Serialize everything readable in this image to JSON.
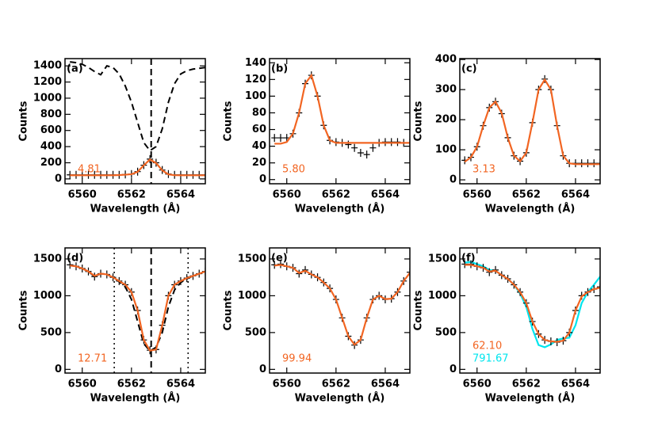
{
  "chart_data": [
    {
      "type": "line",
      "panel_label": "(a)",
      "xlabel": "Wavelength (Å)",
      "ylabel": "Counts",
      "xlim": [
        6559.3,
        6565
      ],
      "xticks": [
        6560,
        6562,
        6564
      ],
      "ylim": [
        -60,
        1490
      ],
      "yticks": [
        0,
        200,
        400,
        600,
        800,
        1000,
        1200,
        1400
      ],
      "x": [
        6559.5,
        6559.75,
        6560,
        6560.25,
        6560.5,
        6560.75,
        6561,
        6561.25,
        6561.5,
        6561.75,
        6562,
        6562.25,
        6562.5,
        6562.75,
        6563,
        6563.25,
        6563.5,
        6563.75,
        6564,
        6564.25,
        6564.5,
        6564.75,
        6565
      ],
      "series": [
        {
          "style": "dashed",
          "color": "#000000",
          "values": [
            1450,
            1440,
            1420,
            1380,
            1330,
            1290,
            1400,
            1380,
            1300,
            1150,
            950,
            700,
            450,
            350,
            400,
            620,
            950,
            1180,
            1300,
            1340,
            1360,
            1370,
            1380
          ]
        },
        {
          "style": "crosses",
          "color": "#000000",
          "values": [
            50,
            50,
            50,
            50,
            50,
            50,
            50,
            50,
            50,
            55,
            60,
            90,
            170,
            245,
            200,
            110,
            60,
            50,
            50,
            50,
            50,
            50,
            50
          ]
        },
        {
          "style": "solid",
          "color": "#f26522",
          "values": [
            45,
            45,
            45,
            45,
            45,
            45,
            45,
            45,
            48,
            52,
            58,
            88,
            168,
            240,
            196,
            106,
            56,
            46,
            45,
            45,
            45,
            45,
            45
          ]
        }
      ],
      "vlines": [
        {
          "x": 6562.8,
          "style": "dashed"
        }
      ],
      "annotations": [
        {
          "text": "4.81",
          "color": "#f26522"
        }
      ]
    },
    {
      "type": "line",
      "panel_label": "(b)",
      "xlabel": "Wavelength (Å)",
      "ylabel": "Counts",
      "xlim": [
        6559.3,
        6565
      ],
      "xticks": [
        6560,
        6562,
        6564
      ],
      "ylim": [
        -5,
        145
      ],
      "yticks": [
        0,
        20,
        40,
        60,
        80,
        100,
        120,
        140
      ],
      "x": [
        6559.5,
        6559.75,
        6560,
        6560.25,
        6560.5,
        6560.75,
        6561,
        6561.25,
        6561.5,
        6561.75,
        6562,
        6562.25,
        6562.5,
        6562.75,
        6563,
        6563.25,
        6563.5,
        6563.75,
        6564,
        6564.25,
        6564.5,
        6564.75,
        6565
      ],
      "series": [
        {
          "style": "crosses",
          "color": "#000000",
          "values": [
            50,
            50,
            50,
            55,
            80,
            115,
            125,
            100,
            65,
            47,
            45,
            44,
            42,
            38,
            32,
            30,
            38,
            44,
            45,
            45,
            45,
            44,
            44
          ]
        },
        {
          "style": "solid",
          "color": "#f26522",
          "values": [
            43,
            43,
            45,
            55,
            80,
            115,
            125,
            100,
            65,
            47,
            44,
            44,
            44,
            44,
            44,
            44,
            44,
            44,
            44,
            44,
            44,
            44,
            44
          ]
        }
      ],
      "vlines": [],
      "annotations": [
        {
          "text": "5.80",
          "color": "#f26522"
        }
      ]
    },
    {
      "type": "line",
      "panel_label": "(c)",
      "xlabel": "Wavelength (Å)",
      "ylabel": "Counts",
      "xlim": [
        6559.3,
        6565
      ],
      "xticks": [
        6560,
        6562,
        6564
      ],
      "ylim": [
        -13,
        403
      ],
      "yticks": [
        0,
        100,
        200,
        300,
        400
      ],
      "x": [
        6559.5,
        6559.75,
        6560,
        6560.25,
        6560.5,
        6560.75,
        6561,
        6561.25,
        6561.5,
        6561.75,
        6562,
        6562.25,
        6562.5,
        6562.75,
        6563,
        6563.25,
        6563.5,
        6563.75,
        6564,
        6564.25,
        6564.5,
        6564.75,
        6565
      ],
      "series": [
        {
          "style": "crosses",
          "color": "#000000",
          "values": [
            65,
            75,
            110,
            180,
            240,
            260,
            220,
            140,
            80,
            62,
            90,
            190,
            300,
            335,
            300,
            180,
            80,
            55,
            55,
            55,
            55,
            55,
            55
          ]
        },
        {
          "style": "solid",
          "color": "#f26522",
          "values": [
            60,
            75,
            110,
            180,
            240,
            260,
            222,
            140,
            80,
            62,
            90,
            190,
            300,
            333,
            300,
            180,
            80,
            55,
            52,
            52,
            52,
            52,
            52
          ]
        }
      ],
      "vlines": [],
      "annotations": [
        {
          "text": "3.13",
          "color": "#f26522"
        }
      ]
    },
    {
      "type": "line",
      "panel_label": "(d)",
      "xlabel": "Wavelength (Å)",
      "ylabel": "Counts",
      "xlim": [
        6559.3,
        6565
      ],
      "xticks": [
        6560,
        6562,
        6564
      ],
      "ylim": [
        -50,
        1650
      ],
      "yticks": [
        0,
        500,
        1000,
        1500
      ],
      "x": [
        6559.5,
        6559.75,
        6560,
        6560.25,
        6560.5,
        6560.75,
        6561,
        6561.25,
        6561.5,
        6561.75,
        6562,
        6562.25,
        6562.5,
        6562.75,
        6563,
        6563.25,
        6563.5,
        6563.75,
        6564,
        6564.25,
        6564.5,
        6564.75,
        6565
      ],
      "series": [
        {
          "style": "dashed",
          "color": "#000000",
          "values": [
            1420,
            1400,
            1370,
            1330,
            1260,
            1300,
            1290,
            1250,
            1190,
            1120,
            950,
            650,
            350,
            250,
            300,
            500,
            850,
            1080,
            1180,
            1230,
            1270,
            1300,
            1330
          ]
        },
        {
          "style": "crosses",
          "color": "#000000",
          "values": [
            1420,
            1400,
            1370,
            1330,
            1260,
            1300,
            1290,
            1250,
            1200,
            1150,
            1050,
            800,
            400,
            260,
            270,
            600,
            1000,
            1150,
            1200,
            1240,
            1270,
            1300,
            1330
          ]
        },
        {
          "style": "solid",
          "color": "#f26522",
          "values": [
            1410,
            1400,
            1370,
            1330,
            1270,
            1300,
            1290,
            1250,
            1200,
            1150,
            1050,
            800,
            400,
            255,
            270,
            600,
            1000,
            1150,
            1200,
            1240,
            1270,
            1300,
            1330
          ]
        }
      ],
      "vlines": [
        {
          "x": 6562.8,
          "style": "dashed"
        },
        {
          "x": 6561.3,
          "style": "dotted"
        },
        {
          "x": 6564.3,
          "style": "dotted"
        }
      ],
      "annotations": [
        {
          "text": "12.71",
          "color": "#f26522"
        }
      ]
    },
    {
      "type": "line",
      "panel_label": "(e)",
      "xlabel": "Wavelength (Å)",
      "ylabel": "Counts",
      "xlim": [
        6559.3,
        6565
      ],
      "xticks": [
        6560,
        6562,
        6564
      ],
      "ylim": [
        -50,
        1650
      ],
      "yticks": [
        0,
        500,
        1000,
        1500
      ],
      "x": [
        6559.5,
        6559.75,
        6560,
        6560.25,
        6560.5,
        6560.75,
        6561,
        6561.25,
        6561.5,
        6561.75,
        6562,
        6562.25,
        6562.5,
        6562.75,
        6563,
        6563.25,
        6563.5,
        6563.75,
        6564,
        6564.25,
        6564.5,
        6564.75,
        6565
      ],
      "series": [
        {
          "style": "crosses",
          "color": "#000000",
          "values": [
            1420,
            1430,
            1400,
            1380,
            1300,
            1350,
            1290,
            1250,
            1180,
            1100,
            950,
            700,
            450,
            330,
            400,
            700,
            950,
            1000,
            950,
            960,
            1050,
            1200,
            1320
          ]
        },
        {
          "style": "solid",
          "color": "#f26522",
          "values": [
            1410,
            1420,
            1400,
            1380,
            1310,
            1340,
            1290,
            1250,
            1180,
            1100,
            950,
            700,
            450,
            335,
            400,
            700,
            950,
            1000,
            955,
            960,
            1050,
            1200,
            1310
          ]
        }
      ],
      "vlines": [],
      "annotations": [
        {
          "text": "99.94",
          "color": "#f26522"
        }
      ]
    },
    {
      "type": "line",
      "panel_label": "(f)",
      "xlabel": "Wavelength (Å)",
      "ylabel": "Counts",
      "xlim": [
        6559.3,
        6565
      ],
      "xticks": [
        6560,
        6562,
        6564
      ],
      "ylim": [
        -50,
        1650
      ],
      "yticks": [
        0,
        500,
        1000,
        1500
      ],
      "x": [
        6559.5,
        6559.75,
        6560,
        6560.25,
        6560.5,
        6560.75,
        6561,
        6561.25,
        6561.5,
        6561.75,
        6562,
        6562.25,
        6562.5,
        6562.75,
        6563,
        6563.25,
        6563.5,
        6563.75,
        6564,
        6564.25,
        6564.5,
        6564.75,
        6565
      ],
      "series": [
        {
          "style": "solid",
          "color": "#00e5ee",
          "values": [
            1450,
            1460,
            1430,
            1400,
            1350,
            1340,
            1280,
            1230,
            1150,
            1030,
            850,
            550,
            330,
            300,
            340,
            400,
            420,
            430,
            600,
            900,
            1050,
            1150,
            1260
          ]
        },
        {
          "style": "crosses",
          "color": "#000000",
          "values": [
            1430,
            1430,
            1400,
            1380,
            1320,
            1350,
            1280,
            1230,
            1150,
            1050,
            900,
            650,
            480,
            400,
            380,
            370,
            390,
            500,
            800,
            1000,
            1050,
            1090,
            1120
          ]
        },
        {
          "style": "solid",
          "color": "#f26522",
          "values": [
            1420,
            1420,
            1400,
            1380,
            1330,
            1340,
            1280,
            1230,
            1150,
            1050,
            900,
            650,
            480,
            400,
            380,
            375,
            390,
            500,
            800,
            990,
            1050,
            1090,
            1110
          ]
        }
      ],
      "vlines": [],
      "annotations": [
        {
          "text": "62.10",
          "color": "#f26522"
        },
        {
          "text": "791.67",
          "color": "#00e5ee"
        }
      ]
    }
  ]
}
